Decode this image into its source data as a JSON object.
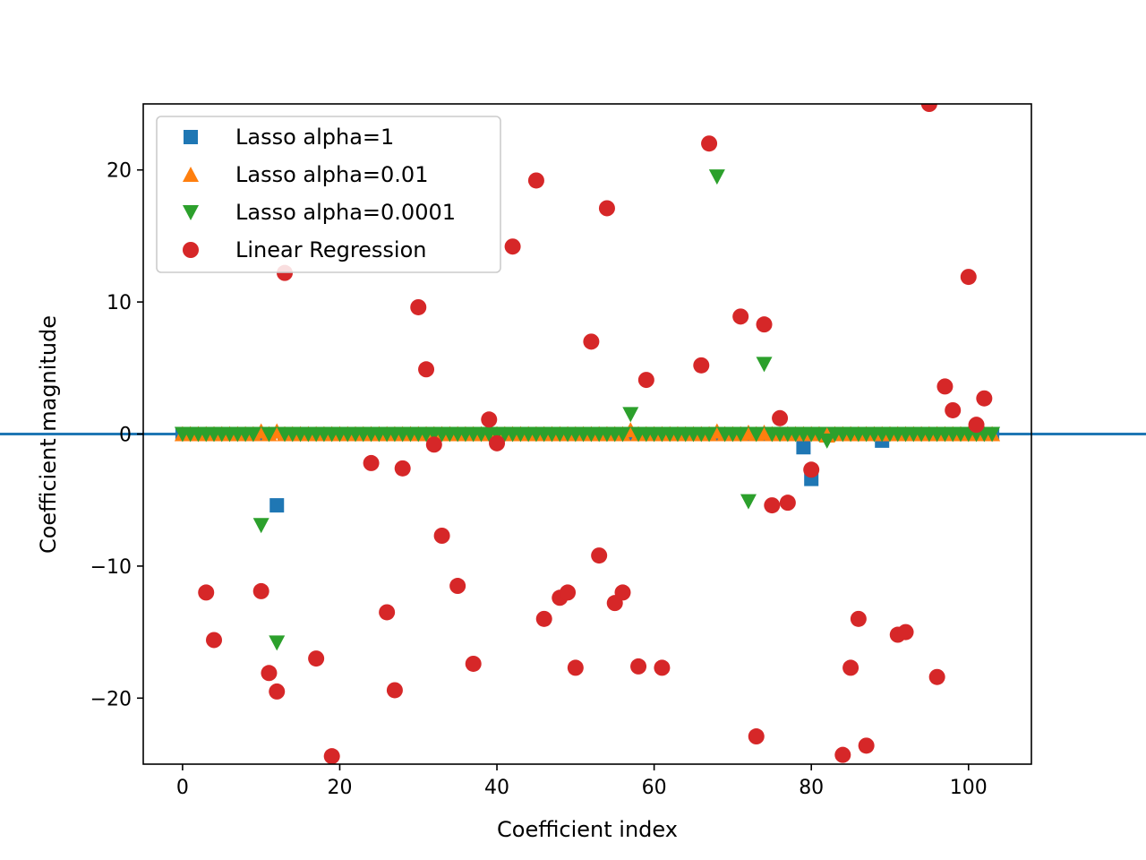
{
  "chart_data": {
    "type": "scatter",
    "title": "",
    "xlabel": "Coefficient index",
    "ylabel": "Coefficient magnitude",
    "xlim": [
      -5,
      108
    ],
    "ylim": [
      -25,
      25
    ],
    "x_ticks": [
      0,
      20,
      40,
      60,
      80,
      100
    ],
    "y_ticks": [
      -20,
      -10,
      0,
      10,
      20
    ],
    "x_tick_labels": [
      "0",
      "20",
      "40",
      "60",
      "80",
      "100"
    ],
    "y_tick_labels": [
      "−20",
      "−10",
      "0",
      "10",
      "20"
    ],
    "grid": false,
    "legend_position": "top-left",
    "n_coefficients": 104,
    "hline": {
      "y": 0,
      "color": "#1f77b4"
    },
    "series": [
      {
        "name": "Lasso alpha=1",
        "marker": "square",
        "color": "#1f77b4",
        "default_value": 0,
        "nonzero": [
          [
            12,
            -5.4
          ],
          [
            79,
            -1.0
          ],
          [
            80,
            -3.4
          ],
          [
            89,
            -0.5
          ]
        ]
      },
      {
        "name": "Lasso alpha=0.01",
        "marker": "triangle-up",
        "color": "#ff7f0e",
        "default_value": 0,
        "nonzero": [
          [
            10,
            0.2
          ],
          [
            12,
            0.2
          ],
          [
            57,
            0.3
          ],
          [
            68,
            0.2
          ],
          [
            72,
            0.1
          ],
          [
            74,
            0.1
          ],
          [
            82,
            -0.1
          ]
        ]
      },
      {
        "name": "Lasso alpha=0.0001",
        "marker": "triangle-down",
        "color": "#2ca02c",
        "default_value": 0,
        "nonzero": [
          [
            10,
            -6.9
          ],
          [
            12,
            -15.8
          ],
          [
            57,
            1.5
          ],
          [
            68,
            19.5
          ],
          [
            72,
            -5.1
          ],
          [
            74,
            5.3
          ],
          [
            82,
            -0.5
          ]
        ]
      },
      {
        "name": "Linear Regression",
        "marker": "circle",
        "color": "#d62728",
        "points": [
          [
            3,
            -12.0
          ],
          [
            4,
            -15.6
          ],
          [
            10,
            -11.9
          ],
          [
            11,
            -18.1
          ],
          [
            12,
            -19.5
          ],
          [
            13,
            12.2
          ],
          [
            17,
            -17.0
          ],
          [
            19,
            -24.4
          ],
          [
            24,
            -2.2
          ],
          [
            26,
            -13.5
          ],
          [
            27,
            -19.4
          ],
          [
            28,
            -2.6
          ],
          [
            30,
            9.6
          ],
          [
            31,
            4.9
          ],
          [
            32,
            -0.8
          ],
          [
            33,
            -7.7
          ],
          [
            35,
            -11.5
          ],
          [
            37,
            -17.4
          ],
          [
            39,
            1.1
          ],
          [
            40,
            -0.7
          ],
          [
            42,
            14.2
          ],
          [
            45,
            19.2
          ],
          [
            46,
            -14.0
          ],
          [
            48,
            -12.4
          ],
          [
            49,
            -12.0
          ],
          [
            50,
            -17.7
          ],
          [
            52,
            7.0
          ],
          [
            53,
            -9.2
          ],
          [
            54,
            17.1
          ],
          [
            55,
            -12.8
          ],
          [
            56,
            -12.0
          ],
          [
            58,
            -17.6
          ],
          [
            59,
            4.1
          ],
          [
            61,
            -17.7
          ],
          [
            66,
            5.2
          ],
          [
            67,
            22.0
          ],
          [
            71,
            8.9
          ],
          [
            73,
            -22.9
          ],
          [
            74,
            8.3
          ],
          [
            75,
            -5.4
          ],
          [
            76,
            1.2
          ],
          [
            77,
            -5.2
          ],
          [
            80,
            -2.7
          ],
          [
            84,
            -24.3
          ],
          [
            85,
            -17.7
          ],
          [
            86,
            -14.0
          ],
          [
            87,
            -23.6
          ],
          [
            91,
            -15.2
          ],
          [
            92,
            -15.0
          ],
          [
            95,
            25.0
          ],
          [
            96,
            -18.4
          ],
          [
            97,
            3.6
          ],
          [
            98,
            1.8
          ],
          [
            100,
            11.9
          ],
          [
            101,
            0.7
          ],
          [
            102,
            2.7
          ]
        ]
      }
    ]
  }
}
